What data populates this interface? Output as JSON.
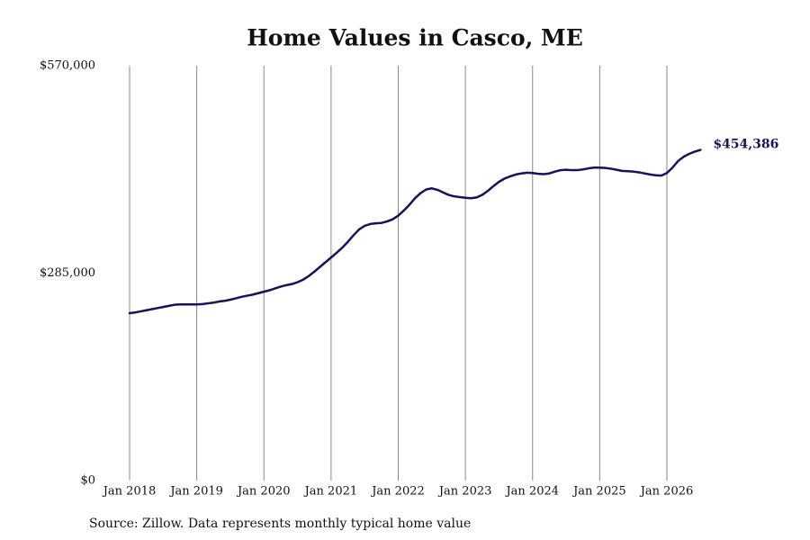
{
  "chart_data": {
    "type": "line",
    "title": "Home Values in Casco, ME",
    "source": "Source: Zillow. Data represents monthly typical home value",
    "x": [
      "Jan 2018",
      "Feb 2018",
      "Mar 2018",
      "Apr 2018",
      "May 2018",
      "Jun 2018",
      "Jul 2018",
      "Aug 2018",
      "Sep 2018",
      "Oct 2018",
      "Nov 2018",
      "Dec 2018",
      "Jan 2019",
      "Feb 2019",
      "Mar 2019",
      "Apr 2019",
      "May 2019",
      "Jun 2019",
      "Jul 2019",
      "Aug 2019",
      "Sep 2019",
      "Oct 2019",
      "Nov 2019",
      "Dec 2019",
      "Jan 2020",
      "Feb 2020",
      "Mar 2020",
      "Apr 2020",
      "May 2020",
      "Jun 2020",
      "Jul 2020",
      "Aug 2020",
      "Sep 2020",
      "Oct 2020",
      "Nov 2020",
      "Dec 2020",
      "Jan 2021",
      "Feb 2021",
      "Mar 2021",
      "Apr 2021",
      "May 2021",
      "Jun 2021",
      "Jul 2021",
      "Aug 2021",
      "Sep 2021",
      "Oct 2021",
      "Nov 2021",
      "Dec 2021",
      "Jan 2022",
      "Feb 2022",
      "Mar 2022",
      "Apr 2022",
      "May 2022",
      "Jun 2022",
      "Jul 2022",
      "Aug 2022",
      "Sep 2022",
      "Oct 2022",
      "Nov 2022",
      "Dec 2022",
      "Jan 2023",
      "Feb 2023",
      "Mar 2023",
      "Apr 2023",
      "May 2023",
      "Jun 2023",
      "Jul 2023",
      "Aug 2023",
      "Sep 2023",
      "Oct 2023",
      "Nov 2023",
      "Dec 2023",
      "Jan 2024",
      "Feb 2024",
      "Mar 2024",
      "Apr 2024",
      "May 2024",
      "Jun 2024",
      "Jul 2024",
      "Aug 2024",
      "Sep 2024",
      "Oct 2024",
      "Nov 2024",
      "Dec 2024",
      "Jan 2025",
      "Feb 2025",
      "Mar 2025",
      "Apr 2025",
      "May 2025",
      "Jun 2025",
      "Jul 2025",
      "Aug 2025",
      "Sep 2025",
      "Oct 2025",
      "Nov 2025",
      "Dec 2025",
      "Jan 2026",
      "Feb 2026",
      "Mar 2026",
      "Apr 2026",
      "May 2026",
      "Jun 2026",
      "Jul 2026"
    ],
    "series": [
      {
        "name": "Home value",
        "color": "#14135c",
        "values": [
          230000,
          231000,
          232500,
          234000,
          235500,
          237000,
          238500,
          240000,
          241500,
          242000,
          242000,
          242000,
          242000,
          242500,
          243500,
          244500,
          246000,
          247000,
          248500,
          250500,
          252500,
          254000,
          255500,
          257500,
          259500,
          261500,
          264000,
          266500,
          268500,
          270000,
          272500,
          276000,
          281000,
          287000,
          293500,
          300000,
          306500,
          313000,
          320000,
          328000,
          337000,
          345000,
          350000,
          352500,
          353500,
          354000,
          356000,
          359000,
          364000,
          371000,
          379000,
          388000,
          395000,
          400000,
          401500,
          399500,
          396000,
          392500,
          390500,
          389500,
          388500,
          388000,
          389000,
          392500,
          398000,
          404500,
          410500,
          415000,
          418000,
          420500,
          422000,
          423000,
          422500,
          421500,
          421000,
          422000,
          424500,
          426500,
          427000,
          426500,
          426500,
          427500,
          429000,
          430000,
          430000,
          429500,
          428500,
          427000,
          425500,
          425000,
          424500,
          423500,
          422000,
          420500,
          419500,
          419000,
          422500,
          430000,
          439000,
          445000,
          449000,
          452000,
          454386
        ],
        "value_labels": [
          null,
          null,
          null,
          null,
          null,
          null,
          null,
          null,
          null,
          null,
          null,
          null,
          null,
          null,
          null,
          null,
          null,
          null,
          null,
          null,
          null,
          null,
          null,
          null,
          null,
          null,
          null,
          null,
          null,
          null,
          null,
          null,
          null,
          null,
          null,
          null,
          null,
          null,
          null,
          null,
          null,
          null,
          null,
          null,
          null,
          null,
          null,
          null,
          null,
          null,
          null,
          null,
          null,
          null,
          null,
          null,
          null,
          null,
          null,
          null,
          null,
          null,
          null,
          null,
          null,
          null,
          null,
          null,
          null,
          null,
          null,
          null,
          null,
          null,
          null,
          null,
          null,
          null,
          null,
          null,
          null,
          null,
          null,
          null,
          null,
          null,
          null,
          null,
          null,
          null,
          null,
          null,
          null,
          null,
          null,
          null,
          null,
          null,
          null,
          null,
          null,
          null,
          "$454,386"
        ]
      }
    ],
    "xticks": [
      "Jan 2018",
      "Jan 2019",
      "Jan 2020",
      "Jan 2021",
      "Jan 2022",
      "Jan 2023",
      "Jan 2024",
      "Jan 2025",
      "Jan 2026"
    ],
    "ylim": [
      0,
      570000
    ],
    "yticks": [
      {
        "value": 0,
        "label": "$0"
      },
      {
        "value": 285000,
        "label": "$285,000"
      },
      {
        "value": 570000,
        "label": "$570,000"
      }
    ],
    "grid": "x"
  }
}
